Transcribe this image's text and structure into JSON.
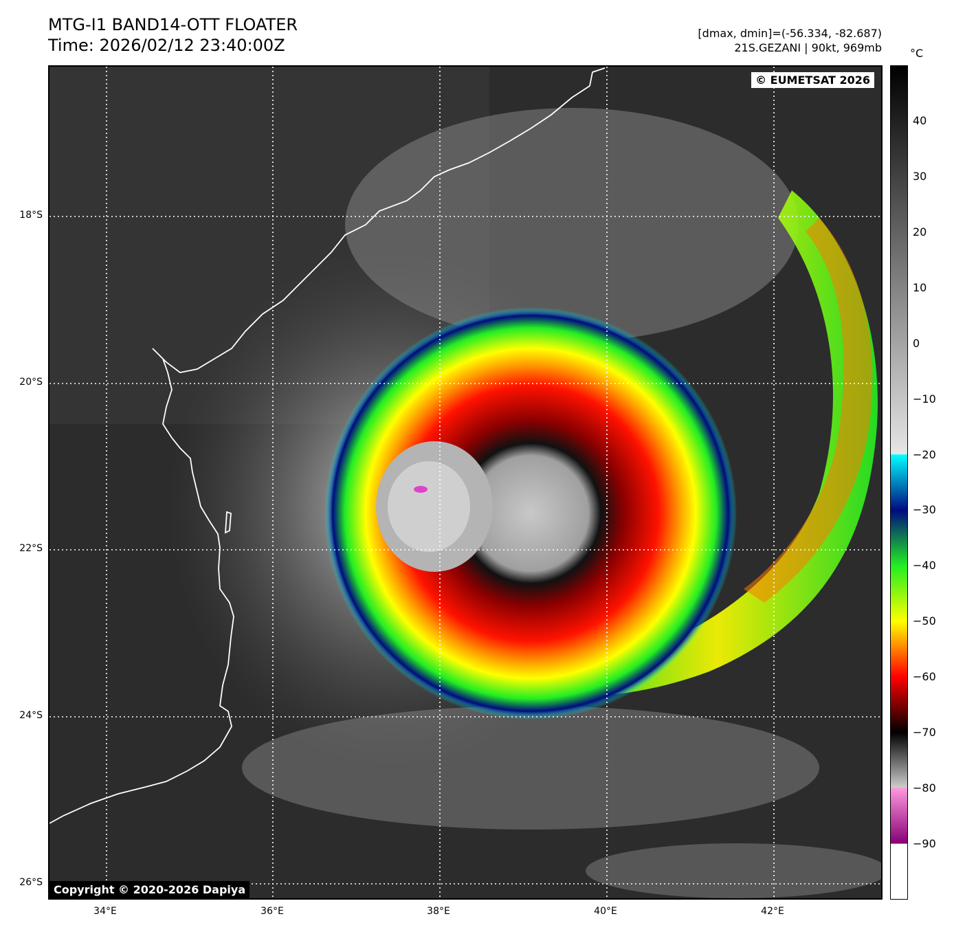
{
  "header": {
    "title_line1": "MTG-I1 BAND14-OTT FLOATER",
    "title_line2": "Time: 2026/02/12 23:40:00Z",
    "info_line1": "[dmax, dmin]=(-56.334, -82.687)",
    "info_line2": "21S.GEZANI | 90kt, 969mb"
  },
  "map": {
    "copyright_top": "© EUMETSAT 2026",
    "copyright_bottom": "Copyright © 2020-2026 Dapiya",
    "lat_labels": [
      "18°S",
      "20°S",
      "22°S",
      "24°S",
      "26°S"
    ],
    "lon_labels": [
      "34°E",
      "36°E",
      "38°E",
      "40°E",
      "42°E"
    ],
    "coastline_color": "#ffffff",
    "gridline_style": "dotted white"
  },
  "colorbar": {
    "unit": "°C",
    "tick_labels": [
      "40",
      "30",
      "20",
      "10",
      "0",
      "−10",
      "−20",
      "−30",
      "−40",
      "−50",
      "−60",
      "−70",
      "−80",
      "−90"
    ],
    "range_min": -100,
    "range_max": 50,
    "stops": [
      {
        "t": 50,
        "color": "#000000"
      },
      {
        "t": -19.9,
        "color": "#e6e6e6"
      },
      {
        "t": -20,
        "color": "#00ffff"
      },
      {
        "t": -30,
        "color": "#000a80"
      },
      {
        "t": -40,
        "color": "#22ee22"
      },
      {
        "t": -50,
        "color": "#ffff00"
      },
      {
        "t": -60,
        "color": "#ff0000"
      },
      {
        "t": -70,
        "color": "#000000"
      },
      {
        "t": -79.9,
        "color": "#cccccc"
      },
      {
        "t": -80,
        "color": "#ff99dd"
      },
      {
        "t": -90,
        "color": "#880077"
      },
      {
        "t": -90.1,
        "color": "#ffffff"
      },
      {
        "t": -100,
        "color": "#ffffff"
      }
    ]
  }
}
